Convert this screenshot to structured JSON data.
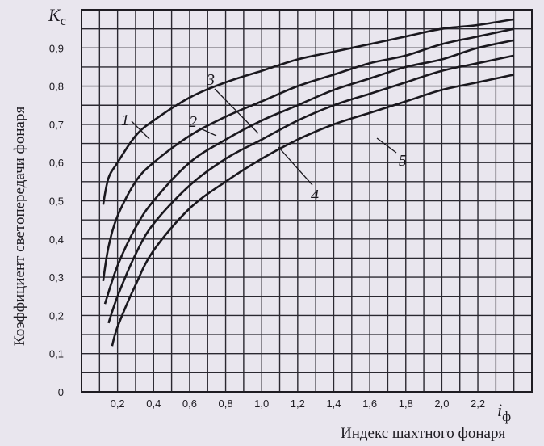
{
  "chart_data": {
    "type": "line",
    "y_symbol": "K",
    "y_symbol_sub": "с",
    "x_symbol": "i",
    "x_symbol_sub": "ф",
    "ylabel": "Коэффициент светопередачи фонаря",
    "xlabel": "Индекс шахтного фонаря",
    "xlim": [
      0,
      2.5
    ],
    "ylim": [
      0,
      1.0
    ],
    "x_ticks": [
      "0,2",
      "0,4",
      "0,6",
      "0,8",
      "1,0",
      "1,2",
      "1,4",
      "1,6",
      "1,8",
      "2,0",
      "2,2"
    ],
    "y_ticks": [
      "0",
      "0,1",
      "0,2",
      "0,3",
      "0,4",
      "0,5",
      "0,6",
      "0,7",
      "0,8",
      "0,9"
    ],
    "grid": true,
    "series": [
      {
        "name": "1",
        "points": [
          [
            0.12,
            0.49
          ],
          [
            0.15,
            0.56
          ],
          [
            0.2,
            0.6
          ],
          [
            0.3,
            0.67
          ],
          [
            0.4,
            0.71
          ],
          [
            0.6,
            0.77
          ],
          [
            0.8,
            0.81
          ],
          [
            1.0,
            0.84
          ],
          [
            1.2,
            0.87
          ],
          [
            1.4,
            0.89
          ],
          [
            1.6,
            0.91
          ],
          [
            1.8,
            0.93
          ],
          [
            2.0,
            0.95
          ],
          [
            2.2,
            0.96
          ],
          [
            2.4,
            0.975
          ]
        ]
      },
      {
        "name": "2",
        "points": [
          [
            0.12,
            0.29
          ],
          [
            0.15,
            0.38
          ],
          [
            0.2,
            0.46
          ],
          [
            0.3,
            0.55
          ],
          [
            0.4,
            0.6
          ],
          [
            0.6,
            0.67
          ],
          [
            0.8,
            0.72
          ],
          [
            1.0,
            0.76
          ],
          [
            1.2,
            0.8
          ],
          [
            1.4,
            0.83
          ],
          [
            1.6,
            0.86
          ],
          [
            1.8,
            0.88
          ],
          [
            2.0,
            0.91
          ],
          [
            2.2,
            0.93
          ],
          [
            2.4,
            0.95
          ]
        ]
      },
      {
        "name": "3",
        "points": [
          [
            0.13,
            0.23
          ],
          [
            0.2,
            0.33
          ],
          [
            0.3,
            0.43
          ],
          [
            0.4,
            0.5
          ],
          [
            0.6,
            0.6
          ],
          [
            0.8,
            0.66
          ],
          [
            1.0,
            0.71
          ],
          [
            1.2,
            0.75
          ],
          [
            1.4,
            0.79
          ],
          [
            1.6,
            0.82
          ],
          [
            1.8,
            0.85
          ],
          [
            2.0,
            0.87
          ],
          [
            2.2,
            0.9
          ],
          [
            2.4,
            0.92
          ]
        ]
      },
      {
        "name": "4",
        "points": [
          [
            0.15,
            0.18
          ],
          [
            0.2,
            0.25
          ],
          [
            0.3,
            0.36
          ],
          [
            0.4,
            0.44
          ],
          [
            0.6,
            0.54
          ],
          [
            0.8,
            0.61
          ],
          [
            1.0,
            0.66
          ],
          [
            1.2,
            0.71
          ],
          [
            1.4,
            0.75
          ],
          [
            1.6,
            0.78
          ],
          [
            1.8,
            0.81
          ],
          [
            2.0,
            0.84
          ],
          [
            2.2,
            0.86
          ],
          [
            2.4,
            0.88
          ]
        ]
      },
      {
        "name": "5",
        "points": [
          [
            0.17,
            0.12
          ],
          [
            0.2,
            0.17
          ],
          [
            0.3,
            0.28
          ],
          [
            0.4,
            0.37
          ],
          [
            0.6,
            0.48
          ],
          [
            0.8,
            0.55
          ],
          [
            1.0,
            0.61
          ],
          [
            1.2,
            0.66
          ],
          [
            1.4,
            0.7
          ],
          [
            1.6,
            0.73
          ],
          [
            1.8,
            0.76
          ],
          [
            2.0,
            0.79
          ],
          [
            2.2,
            0.81
          ],
          [
            2.4,
            0.83
          ]
        ]
      }
    ]
  }
}
